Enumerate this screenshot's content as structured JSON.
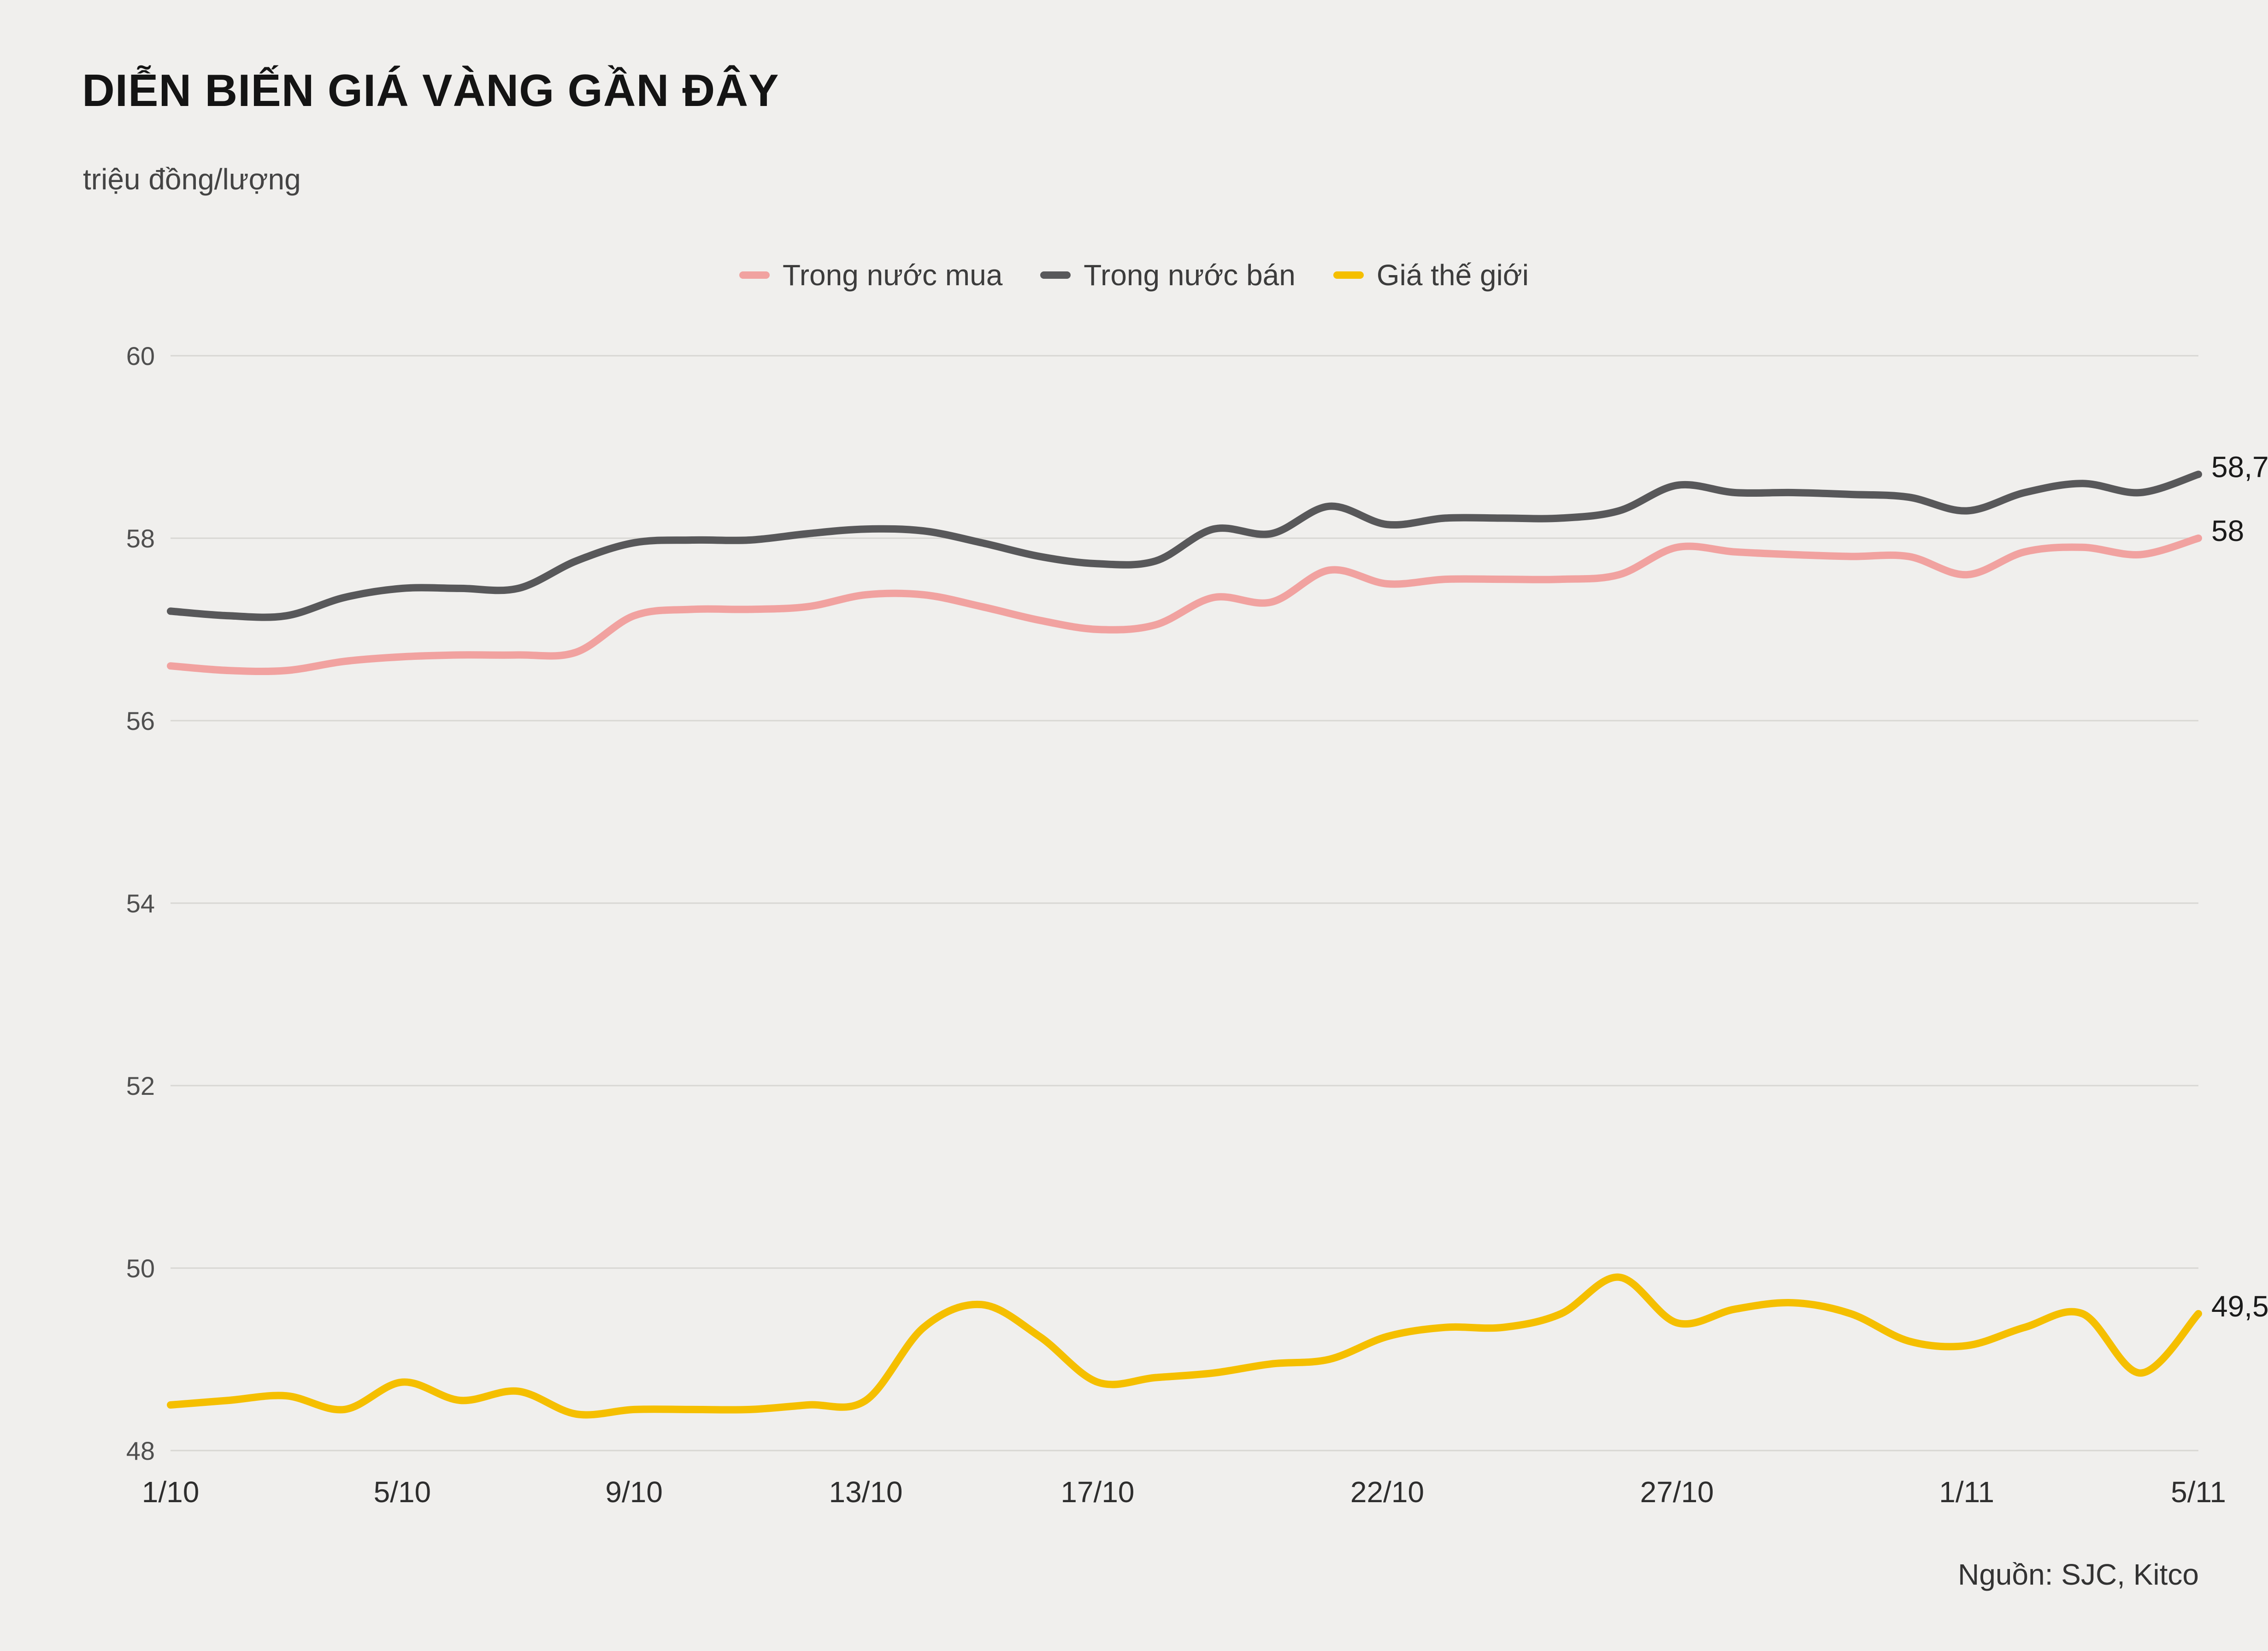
{
  "header": {
    "title": "DIỄN BIẾN GIÁ VÀNG GẦN ĐÂY",
    "subtitle": "triệu đồng/lượng"
  },
  "source": {
    "label": "Nguồn: SJC, Kitco"
  },
  "colors": {
    "background": "#f0efed",
    "grid": "#d8d7d3",
    "axis_text": "#4f4f4f",
    "x_label_text": "#2e2e2e",
    "end_label_text": "#1a1a1a"
  },
  "chart_data": {
    "type": "line",
    "title": "DIỄN BIẾN GIÁ VÀNG GẦN ĐÂY",
    "subtitle_unit": "triệu đồng/lượng",
    "ylim": [
      48,
      60
    ],
    "y_ticks": [
      48,
      50,
      52,
      54,
      56,
      58,
      60
    ],
    "x_labels": [
      "1/10",
      "5/10",
      "9/10",
      "13/10",
      "17/10",
      "22/10",
      "27/10",
      "1/11",
      "5/11"
    ],
    "x_tick_indices": [
      0,
      4,
      8,
      12,
      16,
      21,
      26,
      31,
      35
    ],
    "grid": "horizontal",
    "legend_position": "top",
    "series": [
      {
        "name": "Trong nước mua",
        "color": "#f1a2a0",
        "end_label": "58",
        "values": [
          56.6,
          56.55,
          56.55,
          56.65,
          56.7,
          56.72,
          56.72,
          56.75,
          57.15,
          57.22,
          57.22,
          57.25,
          57.38,
          57.38,
          57.25,
          57.1,
          57.0,
          57.05,
          57.35,
          57.3,
          57.65,
          57.5,
          57.55,
          57.55,
          57.55,
          57.6,
          57.9,
          57.85,
          57.82,
          57.8,
          57.8,
          57.6,
          57.85,
          57.9,
          57.82,
          58.0
        ]
      },
      {
        "name": "Trong nước bán",
        "color": "#58585a",
        "end_label": "58,7",
        "values": [
          57.2,
          57.15,
          57.15,
          57.35,
          57.45,
          57.45,
          57.45,
          57.75,
          57.95,
          57.98,
          57.98,
          58.05,
          58.1,
          58.08,
          57.95,
          57.8,
          57.72,
          57.75,
          58.1,
          58.05,
          58.35,
          58.15,
          58.22,
          58.22,
          58.22,
          58.3,
          58.58,
          58.5,
          58.5,
          58.48,
          58.45,
          58.3,
          58.5,
          58.6,
          58.5,
          58.7
        ]
      },
      {
        "name": "Giá thế giới",
        "color": "#f5bf00",
        "end_label": "49,5",
        "values": [
          48.5,
          48.55,
          48.6,
          48.45,
          48.75,
          48.55,
          48.65,
          48.4,
          48.45,
          48.45,
          48.45,
          48.5,
          48.55,
          49.35,
          49.6,
          49.25,
          48.75,
          48.8,
          48.85,
          48.95,
          49.0,
          49.25,
          49.35,
          49.35,
          49.5,
          49.9,
          49.4,
          49.55,
          49.62,
          49.5,
          49.2,
          49.15,
          49.35,
          49.5,
          48.85,
          49.5
        ]
      }
    ]
  }
}
